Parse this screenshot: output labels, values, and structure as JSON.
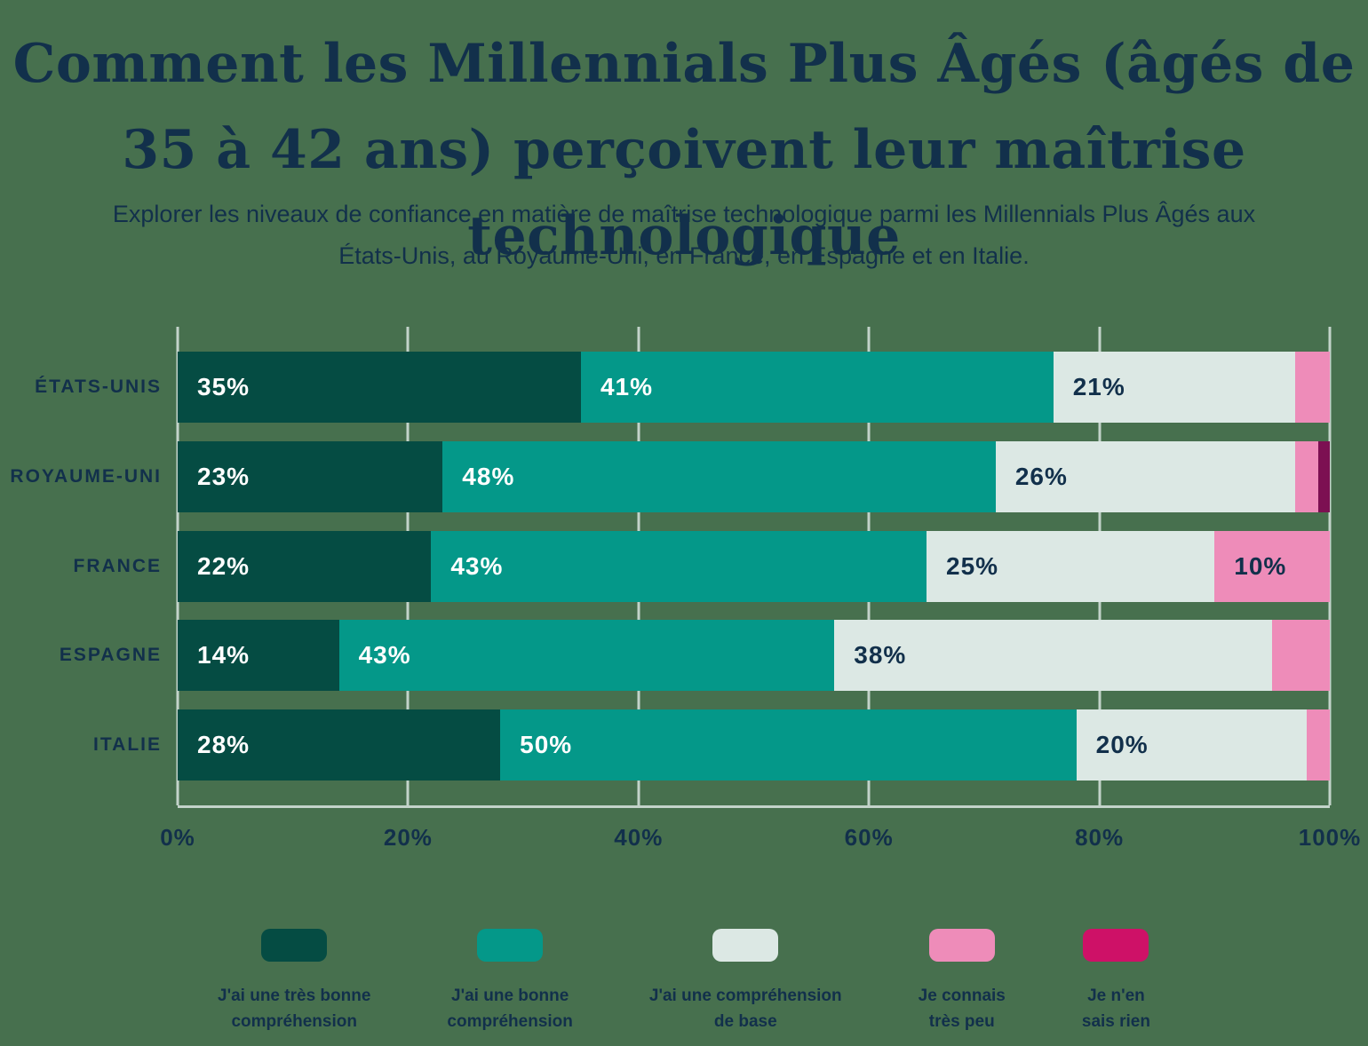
{
  "title": "Comment les Millennials Plus Âgés (âgés de 35 à 42 ans) perçoivent leur maîtrise technologique",
  "subtitle": "Explorer les niveaux de confiance en matière de maîtrise technologique parmi les Millennials Plus Âgés aux États-Unis, au Royaume-Uni, en France, en Espagne et en Italie.",
  "chart_data": {
    "type": "bar",
    "orientation": "horizontal",
    "stacked": true,
    "categories": [
      "ÉTATS-UNIS",
      "ROYAUME-UNI",
      "FRANCE",
      "ESPAGNE",
      "ITALIE"
    ],
    "series": [
      {
        "name": "J'ai une très bonne compréhension",
        "color": "#054C43",
        "label_color": "#FFFFFF",
        "values": [
          35,
          23,
          22,
          14,
          28
        ]
      },
      {
        "name": "J'ai une bonne compréhension",
        "color": "#049889",
        "label_color": "#FFFFFF",
        "values": [
          41,
          48,
          43,
          43,
          50
        ]
      },
      {
        "name": "J'ai une compréhension de base",
        "color": "#DCE8E4",
        "label_color": "#12304B",
        "values": [
          21,
          26,
          25,
          38,
          20
        ]
      },
      {
        "name": "Je connais très peu",
        "color": "#EE8CB9",
        "label_color": "#12304B",
        "values": [
          3,
          2,
          10,
          5,
          2
        ]
      },
      {
        "name": "Je n'en sais rien",
        "color": "#CE1167",
        "bar_color": "#7C1052",
        "label_color": "#FFFFFF",
        "values": [
          0,
          1,
          0,
          0,
          0
        ]
      }
    ],
    "xlim": [
      0,
      100
    ],
    "x_ticks": [
      "0%",
      "20%",
      "40%",
      "60%",
      "80%",
      "100%"
    ],
    "value_suffix": "%",
    "min_value_for_label": 10,
    "grid": "vertical",
    "legend_position": "bottom"
  },
  "legend": {
    "items": [
      {
        "swatch_color": "#054C43",
        "lines": [
          "J'ai une très bonne",
          "compréhension"
        ]
      },
      {
        "swatch_color": "#049889",
        "lines": [
          "J'ai une bonne",
          "compréhension"
        ]
      },
      {
        "swatch_color": "#DCE8E4",
        "lines": [
          "J'ai une compréhension",
          "de base"
        ]
      },
      {
        "swatch_color": "#EE8CB9",
        "lines": [
          "Je connais",
          "très peu"
        ]
      },
      {
        "swatch_color": "#CE1167",
        "lines": [
          "Je n'en",
          "sais rien"
        ]
      }
    ]
  },
  "colors": {
    "background": "#47704E",
    "text": "#12304B",
    "gridline": "#C3D3CA",
    "axis_line": "#C3D3CA"
  }
}
